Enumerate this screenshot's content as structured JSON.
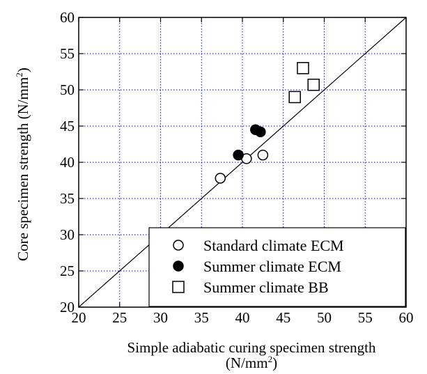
{
  "chart_data": {
    "type": "scatter",
    "xlabel_line1": "Simple adiabatic curing specimen strength",
    "xlabel_line2": "(N/mm",
    "xlabel_sup": "2",
    "xlabel_close": ")",
    "ylabel": "Core specimen strength (N/mm",
    "ylabel_sup": "2",
    "ylabel_close": ")",
    "xlim": [
      20,
      60
    ],
    "ylim": [
      20,
      60
    ],
    "xticks": [
      "20",
      "25",
      "30",
      "35",
      "40",
      "45",
      "50",
      "55",
      "60"
    ],
    "yticks": [
      "20",
      "25",
      "30",
      "35",
      "40",
      "45",
      "50",
      "55",
      "60"
    ],
    "grid": true,
    "reference_line": [
      [
        20,
        20
      ],
      [
        60,
        60
      ]
    ],
    "legend_position": "bottom-right",
    "series": [
      {
        "name": "Standard climate ECM",
        "marker": "open-circle",
        "points": [
          [
            37.3,
            37.8
          ],
          [
            40.5,
            40.5
          ],
          [
            42.5,
            41.0
          ]
        ]
      },
      {
        "name": "Summer climate ECM",
        "marker": "filled-circle",
        "points": [
          [
            39.5,
            41.0
          ],
          [
            41.6,
            44.5
          ],
          [
            42.2,
            44.2
          ]
        ]
      },
      {
        "name": "Summer climate BB",
        "marker": "open-square",
        "points": [
          [
            46.4,
            49.0
          ],
          [
            47.4,
            53.0
          ],
          [
            48.7,
            50.7
          ]
        ]
      }
    ],
    "colors": {
      "axis": "#000000",
      "grid": "#0000ff",
      "marker": "#000000"
    }
  }
}
